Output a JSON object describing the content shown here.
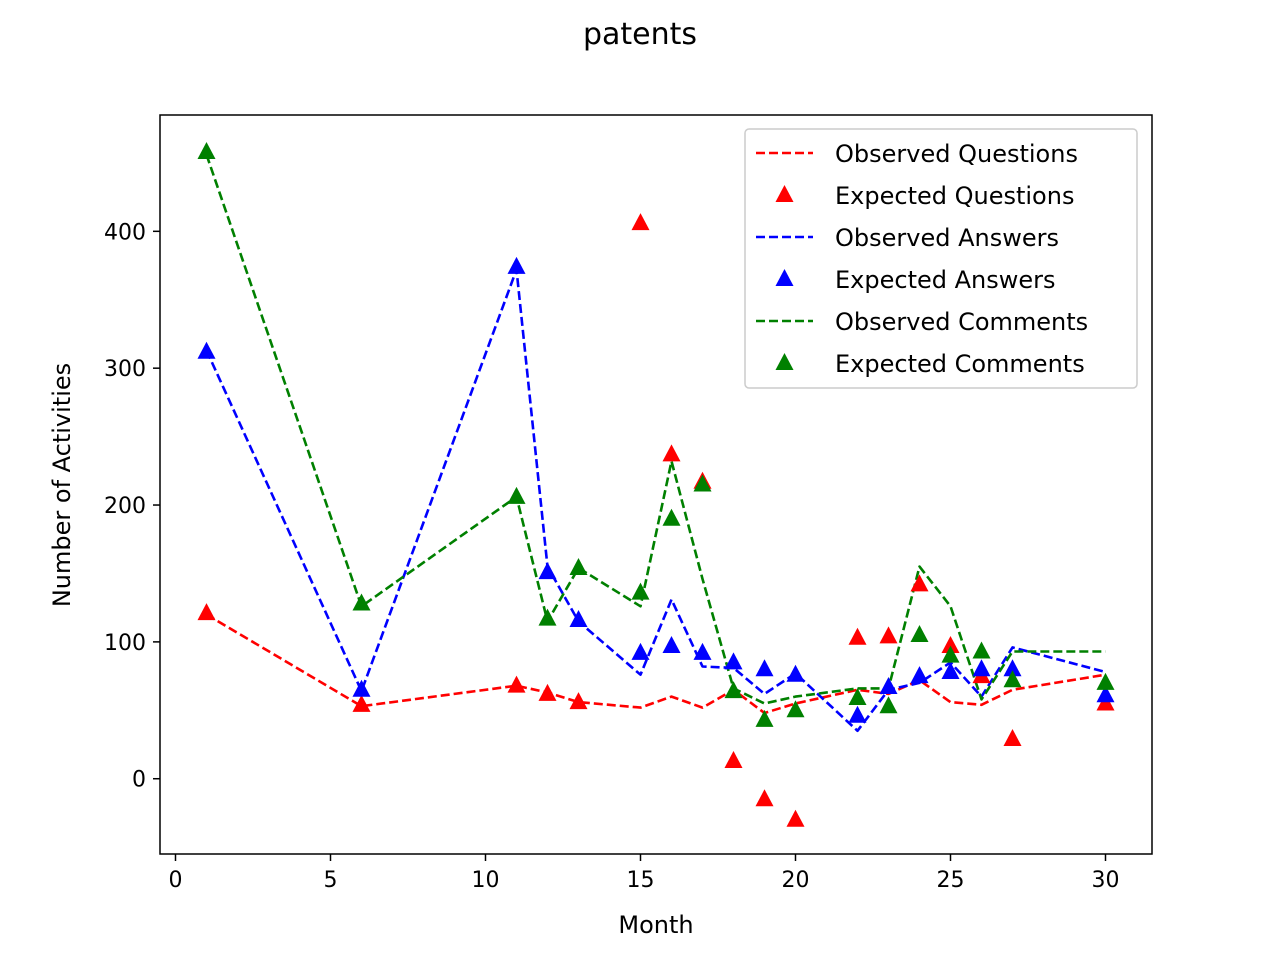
{
  "chart_data": {
    "type": "line",
    "title": "patents",
    "xlabel": "Month",
    "ylabel": "Number of Activities",
    "xlim": [
      -0.5,
      31.5
    ],
    "ylim": [
      -55,
      485
    ],
    "xticks": [
      0,
      5,
      10,
      15,
      20,
      25,
      30
    ],
    "yticks": [
      0,
      100,
      200,
      300,
      400
    ],
    "grid": false,
    "legend_position": "upper right",
    "x": [
      1,
      6,
      11,
      12,
      13,
      15,
      16,
      17,
      18,
      19,
      20,
      22,
      23,
      24,
      25,
      26,
      27,
      30
    ],
    "series": [
      {
        "name": "Observed Questions",
        "kind": "dashed-line",
        "color": "#ff0000",
        "values": [
          120,
          53,
          68,
          63,
          56,
          52,
          60,
          52,
          65,
          48,
          55,
          65,
          62,
          72,
          56,
          54,
          65,
          76
        ]
      },
      {
        "name": "Expected Questions",
        "kind": "triangle-markers",
        "color": "#ff0000",
        "values": [
          121,
          54,
          68,
          62,
          56,
          406,
          237,
          217,
          13,
          -15,
          -30,
          103,
          104,
          142,
          97,
          75,
          29,
          55
        ]
      },
      {
        "name": "Observed Answers",
        "kind": "dashed-line",
        "color": "#0000ff",
        "values": [
          313,
          64,
          372,
          155,
          115,
          76,
          131,
          82,
          81,
          62,
          77,
          35,
          65,
          70,
          85,
          60,
          96,
          78
        ]
      },
      {
        "name": "Expected Answers",
        "kind": "triangle-markers",
        "color": "#0000ff",
        "values": [
          312,
          65,
          374,
          151,
          116,
          92,
          97,
          92,
          85,
          80,
          76,
          46,
          67,
          75,
          78,
          80,
          80,
          61
        ]
      },
      {
        "name": "Observed Comments",
        "kind": "dashed-line",
        "color": "#008000",
        "values": [
          456,
          126,
          206,
          115,
          154,
          126,
          232,
          146,
          66,
          55,
          60,
          66,
          66,
          155,
          126,
          58,
          93,
          93
        ]
      },
      {
        "name": "Expected Comments",
        "kind": "triangle-markers",
        "color": "#008000",
        "values": [
          458,
          128,
          206,
          117,
          154,
          136,
          190,
          215,
          64,
          43,
          50,
          59,
          53,
          105,
          90,
          93,
          72,
          70
        ]
      }
    ]
  }
}
